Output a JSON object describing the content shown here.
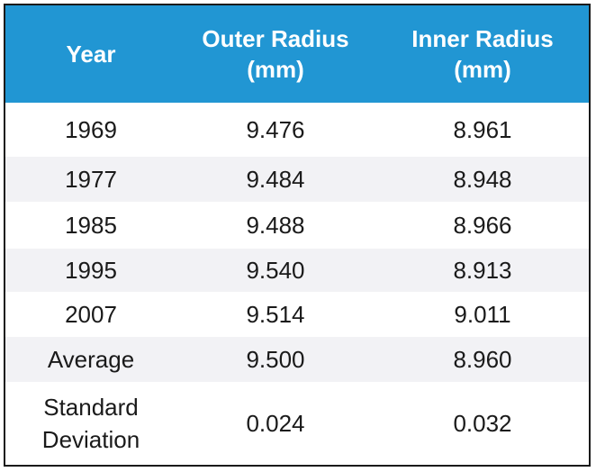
{
  "table": {
    "headers": [
      "Year",
      "Outer Radius\n(mm)",
      "Inner Radius\n(mm)"
    ],
    "rows": [
      [
        "1969",
        "9.476",
        "8.961"
      ],
      [
        "1977",
        "9.484",
        "8.948"
      ],
      [
        "1985",
        "9.488",
        "8.966"
      ],
      [
        "1995",
        "9.540",
        "8.913"
      ],
      [
        "2007",
        "9.514",
        "9.011"
      ],
      [
        "Average",
        "9.500",
        "8.960"
      ],
      [
        "Standard\nDeviation",
        "0.024",
        "0.032"
      ]
    ]
  },
  "colors": {
    "header_background": "#2196d3",
    "header_text": "#ffffff",
    "row_shading": "#f2f2f5",
    "border": "#1a1a1a"
  }
}
